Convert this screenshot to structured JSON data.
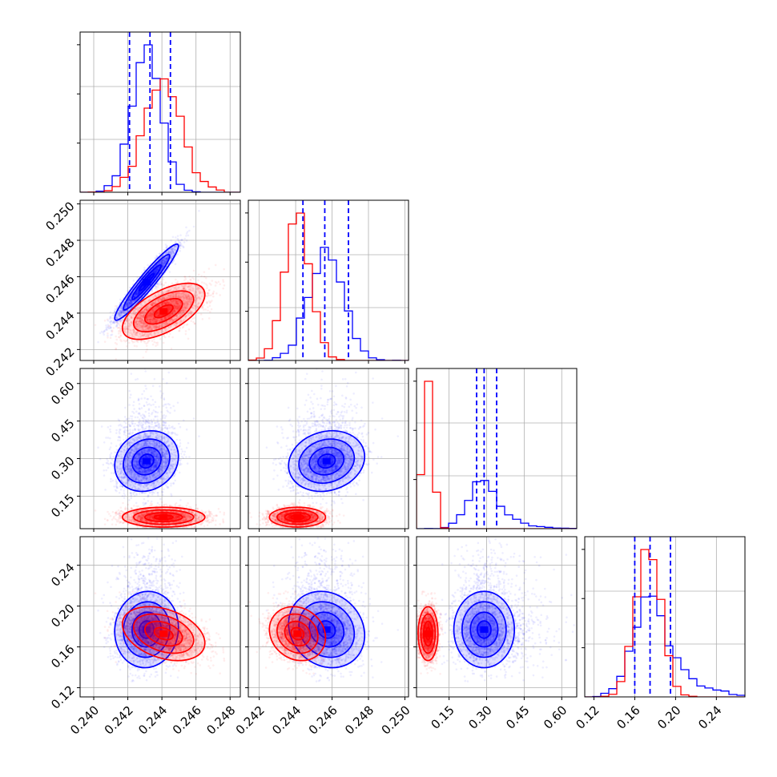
{
  "figure": {
    "colors": {
      "series_a": "#0000ff",
      "series_b": "#ff0000",
      "quantile": "#0000ff",
      "grid": "#b0b0b0"
    }
  },
  "chart_data": {
    "type": "corner",
    "n_params": 4,
    "grid": true,
    "params": [
      {
        "index": 0,
        "range": [
          0.2392,
          0.2486
        ],
        "ticks": [
          0.24,
          0.242,
          0.244,
          0.246,
          0.248
        ],
        "tick_labels": [
          "0.240",
          "0.242",
          "0.244",
          "0.246",
          "0.248"
        ]
      },
      {
        "index": 1,
        "range": [
          0.2414,
          0.2502
        ],
        "ticks": [
          0.242,
          0.244,
          0.246,
          0.248,
          0.25
        ],
        "tick_labels": [
          "0.242",
          "0.244",
          "0.246",
          "0.248",
          "0.250"
        ]
      },
      {
        "index": 2,
        "range": [
          0.02,
          0.66
        ],
        "ticks": [
          0.15,
          0.3,
          0.45,
          0.6
        ],
        "tick_labels": [
          "0.15",
          "0.30",
          "0.45",
          "0.60"
        ]
      },
      {
        "index": 3,
        "range": [
          0.111,
          0.268
        ],
        "ticks": [
          0.12,
          0.16,
          0.2,
          0.24
        ],
        "tick_labels": [
          "0.12",
          "0.16",
          "0.20",
          "0.24"
        ]
      }
    ],
    "series": [
      {
        "color": "#0000ff",
        "mean": [
          0.2431,
          0.2457,
          0.29,
          0.177
        ],
        "sd": [
          0.00085,
          0.00095,
          0.055,
          0.017
        ],
        "corr": [
          [
            1,
            0.95,
            0.15,
            0.05
          ],
          [
            0.95,
            1,
            0.15,
            -0.15
          ],
          [
            0.15,
            0.15,
            1,
            0.0
          ],
          [
            0.05,
            -0.15,
            0.0,
            1
          ]
        ],
        "quantiles": [
          [
            0.2421,
            0.2433,
            0.2445
          ],
          [
            0.2444,
            0.2456,
            0.2469
          ],
          [
            0.26,
            0.29,
            0.34
          ],
          [
            0.16,
            0.175,
            0.195
          ]
        ]
      },
      {
        "color": "#ff0000",
        "mean": [
          0.2441,
          0.2441,
          0.066,
          0.173
        ],
        "sd": [
          0.0011,
          0.0007,
          0.018,
          0.012
        ],
        "corr": [
          [
            1,
            0.6,
            0.0,
            -0.35
          ],
          [
            0.6,
            1,
            0.0,
            -0.15
          ],
          [
            0.0,
            0.0,
            1,
            0.0
          ],
          [
            -0.35,
            -0.15,
            0.0,
            1
          ]
        ]
      }
    ]
  }
}
